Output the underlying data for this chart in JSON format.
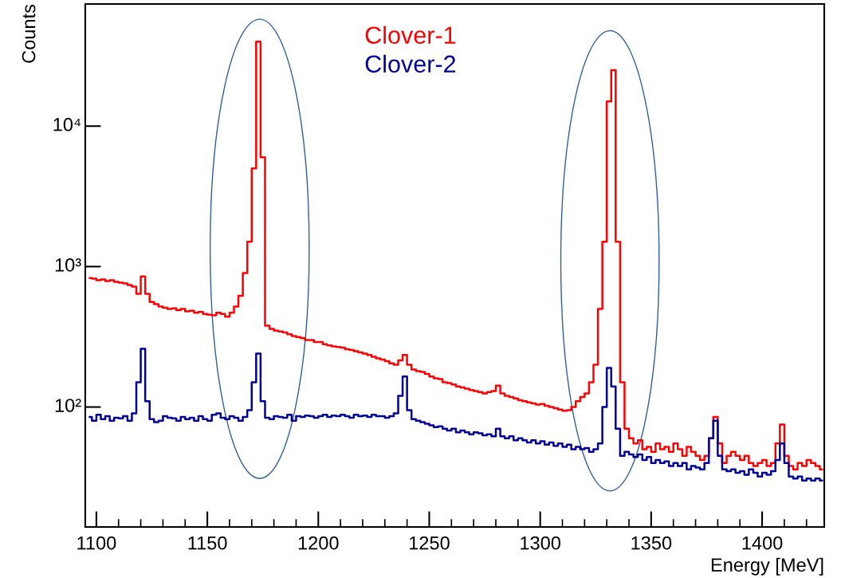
{
  "chart_data": {
    "type": "step",
    "xlabel": "Energy [MeV]",
    "ylabel": "Counts",
    "x": [
      1097,
      1099,
      1101,
      1103,
      1105,
      1107,
      1109,
      1111,
      1113,
      1115,
      1117,
      1119,
      1121,
      1123,
      1125,
      1127,
      1129,
      1131,
      1133,
      1135,
      1137,
      1139,
      1141,
      1143,
      1145,
      1147,
      1149,
      1151,
      1153,
      1155,
      1157,
      1159,
      1161,
      1163,
      1165,
      1167,
      1169,
      1171,
      1173,
      1175,
      1177,
      1179,
      1181,
      1183,
      1185,
      1187,
      1189,
      1191,
      1193,
      1195,
      1197,
      1199,
      1201,
      1203,
      1205,
      1207,
      1209,
      1211,
      1213,
      1215,
      1217,
      1219,
      1221,
      1223,
      1225,
      1227,
      1229,
      1231,
      1233,
      1235,
      1237,
      1239,
      1241,
      1243,
      1245,
      1247,
      1249,
      1251,
      1253,
      1255,
      1257,
      1259,
      1261,
      1263,
      1265,
      1267,
      1269,
      1271,
      1273,
      1275,
      1277,
      1279,
      1281,
      1283,
      1285,
      1287,
      1289,
      1291,
      1293,
      1295,
      1297,
      1299,
      1301,
      1303,
      1305,
      1307,
      1309,
      1311,
      1313,
      1315,
      1317,
      1319,
      1321,
      1323,
      1325,
      1327,
      1329,
      1331,
      1333,
      1335,
      1337,
      1339,
      1341,
      1343,
      1345,
      1347,
      1349,
      1351,
      1353,
      1355,
      1357,
      1359,
      1361,
      1363,
      1365,
      1367,
      1369,
      1371,
      1373,
      1375,
      1377,
      1379,
      1381,
      1383,
      1385,
      1387,
      1389,
      1391,
      1393,
      1395,
      1397,
      1399,
      1401,
      1403,
      1405,
      1407,
      1409,
      1411,
      1413,
      1415,
      1417,
      1419,
      1421,
      1423,
      1425,
      1427
    ],
    "series": [
      {
        "name": "Clover-1",
        "color": "#ff0000",
        "values": [
          830,
          820,
          800,
          810,
          790,
          800,
          780,
          770,
          760,
          740,
          720,
          640,
          850,
          640,
          560,
          540,
          520,
          510,
          500,
          505,
          490,
          500,
          480,
          485,
          470,
          475,
          460,
          455,
          450,
          470,
          460,
          440,
          470,
          520,
          620,
          900,
          1500,
          5000,
          40000,
          6000,
          380,
          360,
          350,
          345,
          340,
          330,
          320,
          315,
          310,
          300,
          300,
          290,
          290,
          280,
          275,
          270,
          268,
          265,
          258,
          255,
          250,
          245,
          240,
          235,
          228,
          222,
          218,
          212,
          205,
          200,
          215,
          235,
          200,
          185,
          180,
          178,
          172,
          165,
          160,
          158,
          150,
          148,
          145,
          140,
          138,
          135,
          132,
          130,
          128,
          125,
          128,
          130,
          142,
          125,
          120,
          118,
          115,
          112,
          110,
          108,
          106,
          104,
          105,
          102,
          100,
          98,
          96,
          94,
          95,
          100,
          110,
          118,
          125,
          150,
          200,
          500,
          1500,
          15000,
          25000,
          1500,
          150,
          70,
          60,
          55,
          58,
          50,
          52,
          48,
          55,
          50,
          52,
          48,
          55,
          50,
          45,
          52,
          48,
          45,
          42,
          45,
          60,
          85,
          55,
          40,
          45,
          48,
          45,
          42,
          45,
          40,
          38,
          40,
          42,
          38,
          40,
          55,
          75,
          45,
          38,
          36,
          40,
          38,
          42,
          40,
          38,
          36
        ]
      },
      {
        "name": "Clover-2",
        "color": "#000099",
        "values": [
          85,
          80,
          88,
          82,
          86,
          80,
          84,
          83,
          86,
          80,
          90,
          150,
          260,
          110,
          82,
          78,
          80,
          86,
          84,
          83,
          80,
          85,
          82,
          84,
          80,
          86,
          82,
          80,
          88,
          90,
          84,
          82,
          86,
          84,
          80,
          85,
          95,
          150,
          240,
          110,
          84,
          82,
          86,
          85,
          84,
          88,
          80,
          86,
          85,
          87,
          86,
          84,
          86,
          88,
          85,
          87,
          86,
          88,
          86,
          84,
          88,
          86,
          87,
          85,
          88,
          86,
          86,
          84,
          86,
          90,
          120,
          165,
          95,
          82,
          80,
          78,
          76,
          74,
          72,
          73,
          70,
          68,
          70,
          66,
          68,
          66,
          64,
          66,
          65,
          63,
          64,
          62,
          70,
          62,
          60,
          62,
          58,
          60,
          58,
          56,
          58,
          55,
          57,
          54,
          56,
          53,
          55,
          52,
          54,
          50,
          52,
          50,
          51,
          48,
          50,
          55,
          100,
          190,
          140,
          70,
          45,
          48,
          46,
          44,
          46,
          42,
          44,
          40,
          42,
          40,
          41,
          38,
          40,
          38,
          40,
          36,
          38,
          37,
          36,
          40,
          60,
          80,
          45,
          36,
          35,
          36,
          34,
          35,
          33,
          36,
          34,
          32,
          34,
          33,
          35,
          42,
          55,
          40,
          32,
          31,
          32,
          30,
          31,
          30,
          31,
          30
        ]
      }
    ],
    "xlim": [
      1095,
      1428
    ],
    "xticks": [
      1100,
      1150,
      1200,
      1250,
      1300,
      1350,
      1400
    ],
    "log": true,
    "ylim": [
      14,
      74000
    ],
    "yticks": [
      {
        "value": 100,
        "label": "10²"
      },
      {
        "value": 1000,
        "label": "10³"
      },
      {
        "value": 10000,
        "label": "10⁴"
      }
    ],
    "grid": false,
    "legend": "top"
  }
}
